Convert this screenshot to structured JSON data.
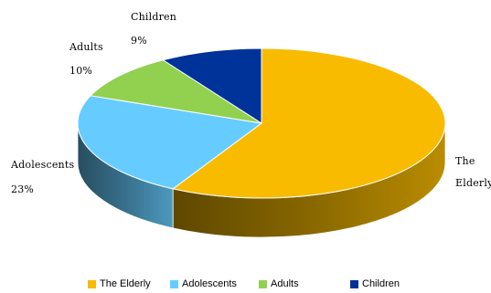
{
  "chart_data": {
    "type": "pie",
    "style": "3d",
    "slices": [
      {
        "label": "The Elderly",
        "value": 58,
        "color": "#F8BB00",
        "label_lines": [
          "The",
          "Elderly"
        ],
        "value_text": ""
      },
      {
        "label": "Adolescents",
        "value": 23,
        "color": "#66CCFF",
        "label_lines": [
          "Adolescents"
        ],
        "value_text": "23%"
      },
      {
        "label": "Adults",
        "value": 10,
        "color": "#92D050",
        "label_lines": [
          "Adults"
        ],
        "value_text": "10%"
      },
      {
        "label": "Children",
        "value": 9,
        "color": "#003399",
        "label_lines": [
          "Children"
        ],
        "value_text": "9%"
      }
    ],
    "legend": [
      "The Elderly",
      "Adolescents",
      "Adults",
      "Children"
    ],
    "legend_position": "bottom"
  }
}
